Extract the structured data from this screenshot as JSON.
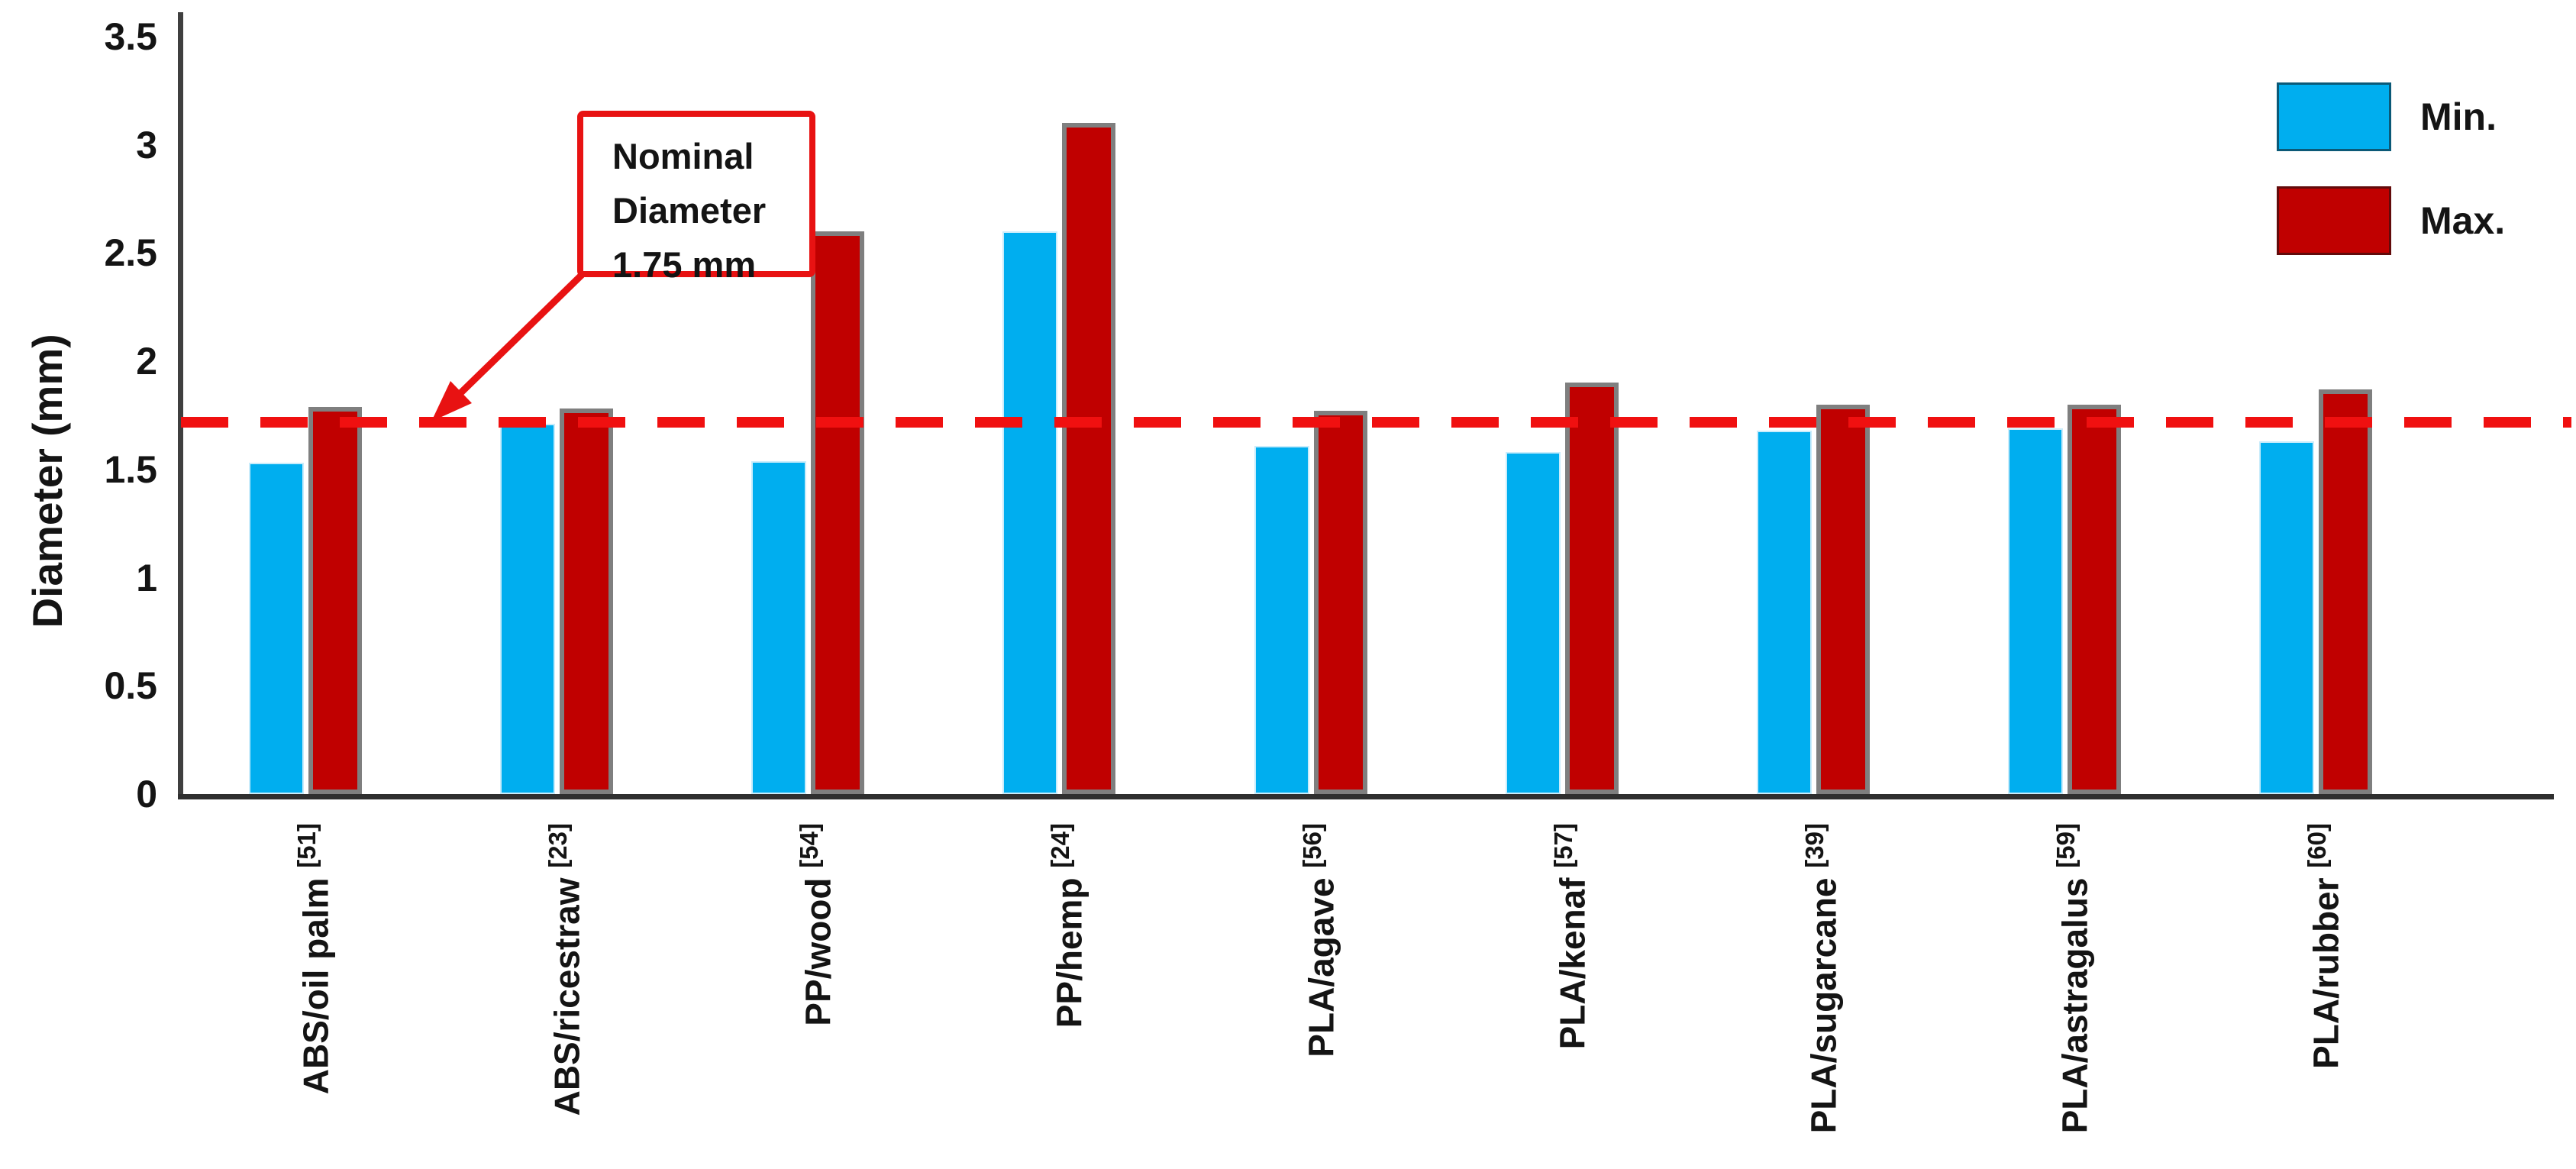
{
  "chart_data": {
    "type": "bar",
    "title": "",
    "ylabel": "Diameter (mm)",
    "xlabel": "",
    "ylim": [
      0,
      3.5
    ],
    "yticks": [
      0,
      0.5,
      1,
      1.5,
      2,
      2.5,
      3,
      3.5
    ],
    "ytick_labels": [
      "0",
      "0.5",
      "1",
      "1.5",
      "2",
      "2.5",
      "3",
      "3.5"
    ],
    "grid": false,
    "legend_position": "top-right",
    "categories": [
      {
        "label": "ABS/oil palm",
        "ref": "[51]"
      },
      {
        "label": "ABS/ricestraw",
        "ref": "[23]"
      },
      {
        "label": "PP/wood",
        "ref": "[54]"
      },
      {
        "label": "PP/hemp",
        "ref": "[24]"
      },
      {
        "label": "PLA/agave",
        "ref": "[56]"
      },
      {
        "label": "PLA/kenaf",
        "ref": "[57]"
      },
      {
        "label": "PLA/sugarcane",
        "ref": "[39]"
      },
      {
        "label": "PLA/astragalus",
        "ref": "[59]"
      },
      {
        "label": "PLA/rubber",
        "ref": "[60]"
      }
    ],
    "series": [
      {
        "name": "Min.",
        "color": "#00AEEF",
        "values": [
          1.53,
          1.71,
          1.54,
          2.6,
          1.61,
          1.58,
          1.68,
          1.69,
          1.63
        ]
      },
      {
        "name": "Max.",
        "color": "#C00000",
        "values": [
          1.79,
          1.78,
          2.6,
          3.1,
          1.77,
          1.9,
          1.8,
          1.8,
          1.87
        ]
      }
    ],
    "reference_line": {
      "value": 1.75,
      "drawn_at": 1.72,
      "style": "dashed",
      "color": "#F01010",
      "annotation_lines": [
        "Nominal",
        "Diameter",
        "1.75 mm"
      ]
    },
    "bar_border_colors": {
      "min": "#C9ECFB",
      "max": "#7F7F7F"
    },
    "axis_color": "#3F3F3F"
  }
}
